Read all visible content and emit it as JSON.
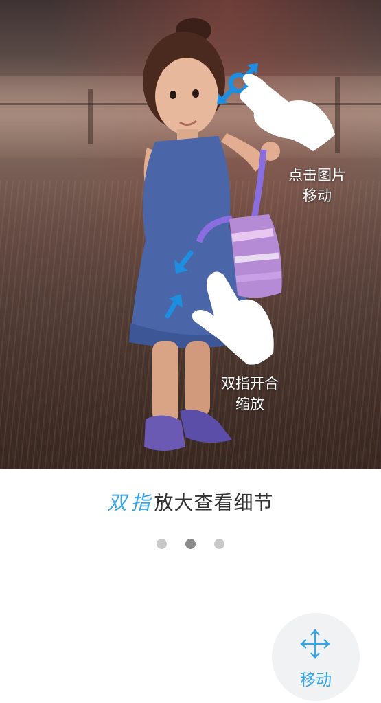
{
  "hints": {
    "tap_move_line1": "点击图片",
    "tap_move_line2": "移动",
    "pinch_zoom_line1": "双指开合",
    "pinch_zoom_line2": "缩放"
  },
  "caption": {
    "accent": "双指",
    "rest": "放大查看细节"
  },
  "pager": {
    "count": 3,
    "active_index": 1
  },
  "move_button": {
    "label": "移动",
    "icon": "move-arrows-icon"
  },
  "colors": {
    "accent": "#35a7e8",
    "caption_text": "#333333",
    "dot_inactive": "#c8c8c8",
    "dot_active": "#8a8a8a",
    "fab_bg": "#f1f2f3"
  }
}
